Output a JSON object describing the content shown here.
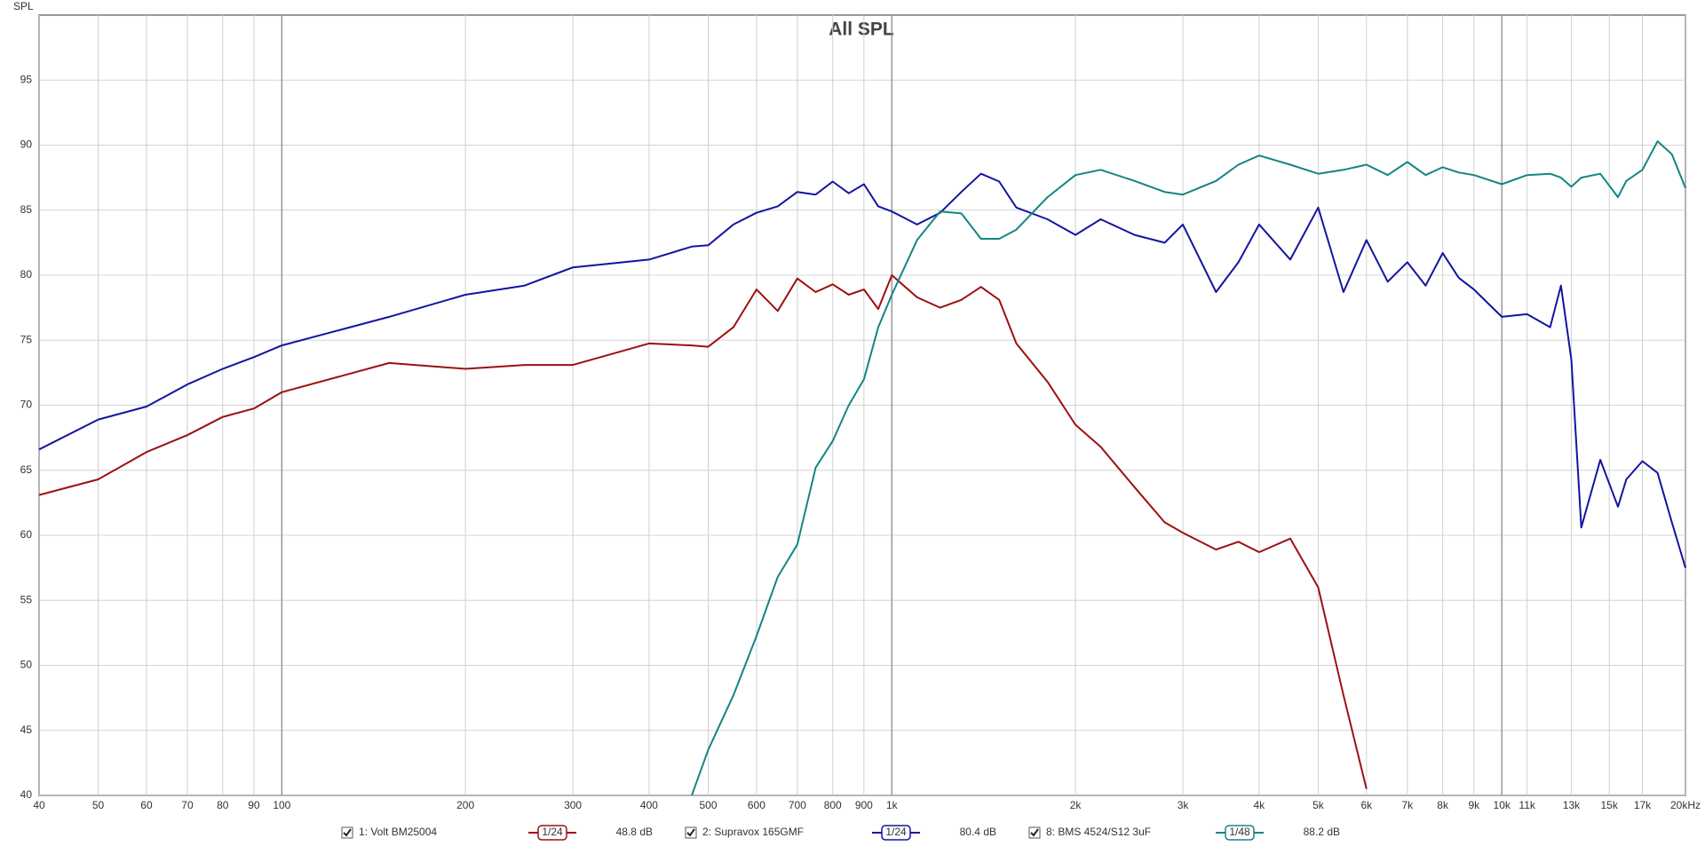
{
  "chart_data": {
    "type": "line",
    "title": "All SPL",
    "y_label": "SPL",
    "x_scale": "log",
    "grid": true,
    "x": [
      40,
      50,
      60,
      70,
      80,
      90,
      100,
      150,
      200,
      250,
      300,
      400,
      470,
      500,
      550,
      600,
      650,
      700,
      750,
      800,
      850,
      900,
      950,
      1000,
      1100,
      1200,
      1300,
      1400,
      1500,
      1600,
      1800,
      2000,
      2200,
      2500,
      2800,
      3000,
      3400,
      3700,
      4000,
      4500,
      5000,
      5500,
      6000,
      6500,
      7000,
      7500,
      8000,
      8500,
      9000,
      10000,
      11000,
      12000,
      12500,
      13000,
      13500,
      14500,
      15500,
      16000,
      17000,
      18000,
      19000,
      20000
    ],
    "xlim": [
      40,
      20000
    ],
    "xticks": [
      40,
      50,
      60,
      70,
      80,
      90,
      100,
      200,
      300,
      400,
      500,
      600,
      700,
      800,
      900,
      {
        "value": 1000,
        "label": "1k"
      },
      {
        "value": 2000,
        "label": "2k"
      },
      {
        "value": 3000,
        "label": "3k"
      },
      {
        "value": 4000,
        "label": "4k"
      },
      {
        "value": 5000,
        "label": "5k"
      },
      {
        "value": 6000,
        "label": "6k"
      },
      {
        "value": 7000,
        "label": "7k"
      },
      {
        "value": 8000,
        "label": "8k"
      },
      {
        "value": 9000,
        "label": "9k"
      },
      {
        "value": 10000,
        "label": "10k"
      },
      {
        "value": 11000,
        "label": "11k"
      },
      {
        "value": 13000,
        "label": "13k"
      },
      {
        "value": 15000,
        "label": "15k"
      },
      {
        "value": 17000,
        "label": "17k"
      },
      {
        "value": 20000,
        "label": "20kHz"
      }
    ],
    "ylim": [
      40,
      100
    ],
    "yticks": [
      40,
      45,
      50,
      55,
      60,
      65,
      70,
      75,
      80,
      85,
      90,
      95
    ],
    "series": [
      {
        "name": "1: Volt BM25004",
        "color": "#9b1010",
        "smoothing": "1/24",
        "level": "48.8 dB",
        "values": [
          63.1,
          64.3,
          66.4,
          67.7,
          69.1,
          69.75,
          71,
          73.25,
          72.8,
          73.1,
          73.1,
          74.75,
          74.6,
          74.5,
          76,
          78.9,
          77.25,
          79.75,
          78.7,
          79.3,
          78.5,
          78.9,
          77.4,
          80,
          78.3,
          77.5,
          78.1,
          79.1,
          78.1,
          74.75,
          71.8,
          68.5,
          66.8,
          63.7,
          61,
          60.2,
          58.9,
          59.5,
          58.7,
          59.75,
          56,
          47.7,
          40.5,
          null,
          null,
          null,
          null,
          null,
          null,
          null,
          null,
          null,
          null,
          null,
          null,
          null,
          null,
          null,
          null,
          null,
          null,
          null
        ]
      },
      {
        "name": "2: Supravox 165GMF",
        "color": "#1414a0",
        "smoothing": "1/24",
        "level": "80.4 dB",
        "values": [
          66.6,
          68.9,
          69.9,
          71.6,
          72.8,
          73.7,
          74.6,
          76.8,
          78.5,
          79.2,
          80.6,
          81.2,
          82.2,
          82.3,
          83.9,
          84.8,
          85.3,
          86.4,
          86.2,
          87.2,
          86.3,
          87.0,
          85.3,
          84.9,
          83.9,
          84.8,
          86.4,
          87.8,
          87.2,
          85.2,
          84.3,
          83.1,
          84.3,
          83.1,
          82.5,
          83.9,
          78.7,
          81,
          83.9,
          81.2,
          85.2,
          78.7,
          82.7,
          79.5,
          81,
          79.2,
          81.7,
          79.8,
          78.9,
          76.8,
          77.0,
          76,
          79.2,
          73.5,
          60.6,
          65.8,
          62.2,
          64.3,
          65.7,
          64.8,
          61,
          57.5
        ]
      },
      {
        "name": "8: BMS 4524/S12 3uF",
        "color": "#138585",
        "smoothing": "1/48",
        "level": "88.2 dB",
        "values": [
          null,
          null,
          null,
          null,
          null,
          null,
          null,
          null,
          null,
          null,
          null,
          null,
          40,
          43.5,
          47.7,
          52.25,
          56.8,
          59.3,
          65.2,
          67.25,
          70,
          72,
          76,
          78.5,
          82.7,
          84.9,
          84.75,
          82.8,
          82.8,
          83.5,
          86,
          87.7,
          88.1,
          87.25,
          86.4,
          86.2,
          87.25,
          88.5,
          89.2,
          88.5,
          87.8,
          88.1,
          88.5,
          87.7,
          88.7,
          87.7,
          88.3,
          87.9,
          87.7,
          87,
          87.7,
          87.8,
          87.5,
          86.8,
          87.5,
          87.8,
          86,
          87.25,
          88.1,
          90.3,
          89.3,
          86.7
        ]
      }
    ]
  }
}
